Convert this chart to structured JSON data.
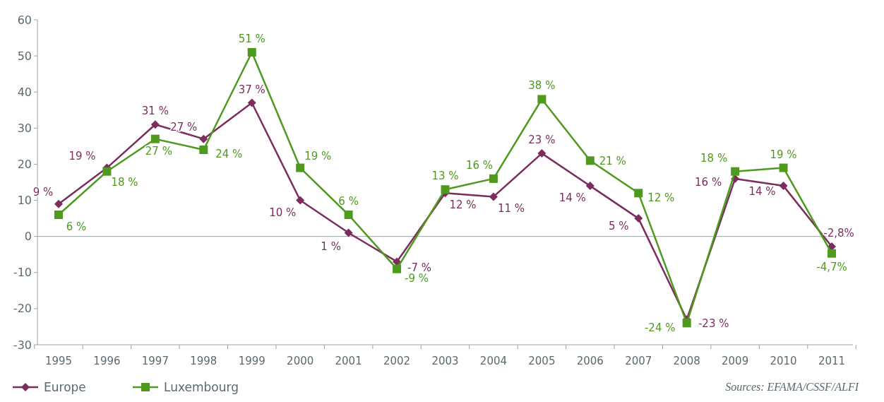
{
  "chart_data": {
    "type": "line",
    "categories": [
      "1995",
      "1996",
      "1997",
      "1998",
      "1999",
      "2000",
      "2001",
      "2002",
      "2003",
      "2004",
      "2005",
      "2006",
      "2007",
      "2008",
      "2009",
      "2010",
      "2011"
    ],
    "series": [
      {
        "name": "Europe",
        "color": "#7b2d5e",
        "marker": "diamond",
        "values": [
          9,
          19,
          31,
          27,
          37,
          10,
          1,
          -7,
          12,
          11,
          23,
          14,
          5,
          -23,
          16,
          14,
          -2.8
        ],
        "value_labels": [
          "9 %",
          "19 %",
          "31 %",
          "27 %",
          "37 %",
          "10 %",
          "1 %",
          "-7 %",
          "12 %",
          "11 %",
          "23 %",
          "14 %",
          "5 %",
          "-23 %",
          "16 %",
          "14 %",
          "-2,8%"
        ]
      },
      {
        "name": "Luxembourg",
        "color": "#4e9a1e",
        "marker": "square",
        "values": [
          6,
          18,
          27,
          24,
          51,
          19,
          6,
          -9,
          13,
          16,
          38,
          21,
          12,
          -24,
          18,
          19,
          -4.7
        ],
        "value_labels": [
          "6 %",
          "18 %",
          "27 %",
          "24 %",
          "51 %",
          "19 %",
          "6 %",
          "-9 %",
          "13 %",
          "16 %",
          "38 %",
          "21 %",
          "12 %",
          "-24 %",
          "18 %",
          "19 %",
          "-4,7%"
        ]
      }
    ],
    "ylim": [
      -30,
      60
    ],
    "yticks": [
      -30,
      -20,
      -10,
      0,
      10,
      20,
      30,
      40,
      50,
      60
    ],
    "ref_lines": [
      {
        "axis": "y",
        "value": 0
      }
    ],
    "grid": false,
    "legend": "bottom left",
    "line_style": "solid",
    "annotations": [
      "Sources: EFAMA/CSSF/ALFI"
    ]
  }
}
